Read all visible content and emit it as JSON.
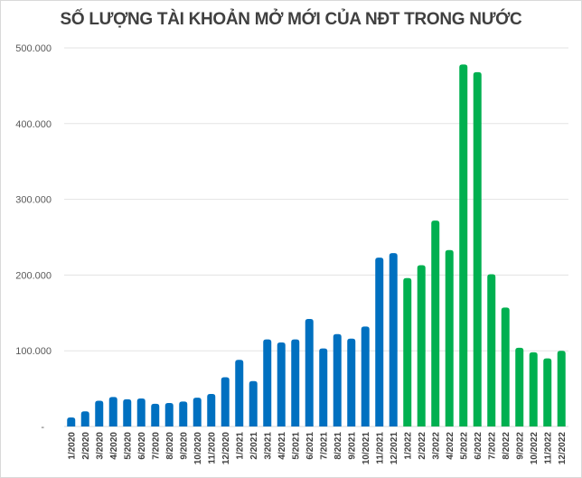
{
  "chart_data": {
    "type": "bar",
    "title": "SỐ LƯỢNG TÀI KHOẢN MỞ MỚI CỦA NĐT TRONG NƯỚC",
    "xlabel": "",
    "ylabel": "",
    "ylim": [
      0,
      500000
    ],
    "yticks": [
      0,
      100000,
      200000,
      300000,
      400000,
      500000
    ],
    "ytick_labels": [
      "-",
      "100.000",
      "200.000",
      "300.000",
      "400.000",
      "500.000"
    ],
    "grid": true,
    "categories": [
      "1/2020",
      "2/2020",
      "3/2020",
      "4/2020",
      "5/2020",
      "6/2020",
      "7/2020",
      "8/2020",
      "9/2020",
      "10/2020",
      "11/2020",
      "12/2020",
      "1/2021",
      "2/2021",
      "3/2021",
      "4/2021",
      "5/2021",
      "6/2021",
      "7/2021",
      "8/2021",
      "9/2021",
      "10/2021",
      "11/2021",
      "12/2021",
      "1/2022",
      "2/2022",
      "3/2022",
      "4/2022",
      "5/2022",
      "6/2022",
      "7/2022",
      "8/2022",
      "9/2022",
      "10/2022",
      "11/2022",
      "12/2022"
    ],
    "values": [
      12000,
      20000,
      34000,
      39000,
      36000,
      37000,
      30000,
      31000,
      33000,
      38000,
      43000,
      65000,
      88000,
      60000,
      115000,
      111000,
      115000,
      142000,
      103000,
      122000,
      116000,
      132000,
      223000,
      229000,
      196000,
      213000,
      272000,
      233000,
      478000,
      468000,
      201000,
      157000,
      104000,
      98000,
      90000,
      100000
    ],
    "bar_colors": {
      "2020-2021": "#0070c0",
      "2022": "#00b050"
    }
  }
}
